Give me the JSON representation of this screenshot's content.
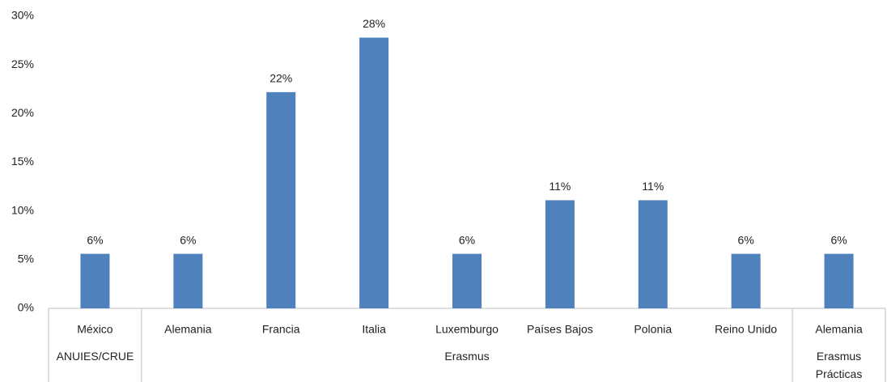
{
  "chart_data": {
    "type": "bar",
    "color": "#4f81bd",
    "ylim": [
      0,
      30
    ],
    "yticks": [
      {
        "value": 0,
        "label": "0%"
      },
      {
        "value": 5,
        "label": "5%"
      },
      {
        "value": 10,
        "label": "10%"
      },
      {
        "value": 15,
        "label": "15%"
      },
      {
        "value": 20,
        "label": "20%"
      },
      {
        "value": 25,
        "label": "25%"
      },
      {
        "value": 30,
        "label": "30%"
      }
    ],
    "groups": [
      {
        "name": "ANUIES/CRUE",
        "categories": [
          "México"
        ],
        "values": [
          5.6
        ],
        "value_labels": [
          "6%"
        ]
      },
      {
        "name": "Erasmus",
        "categories": [
          "Alemania",
          "Francia",
          "Italia",
          "Luxemburgo",
          "Países Bajos",
          "Polonia",
          "Reino Unido"
        ],
        "values": [
          5.6,
          22.2,
          27.8,
          5.6,
          11.1,
          11.1,
          5.6
        ],
        "value_labels": [
          "6%",
          "22%",
          "28%",
          "6%",
          "11%",
          "11%",
          "6%"
        ]
      },
      {
        "name": "Erasmus Prácticas",
        "categories": [
          "Alemania"
        ],
        "values": [
          5.6
        ],
        "value_labels": [
          "6%"
        ]
      }
    ]
  }
}
